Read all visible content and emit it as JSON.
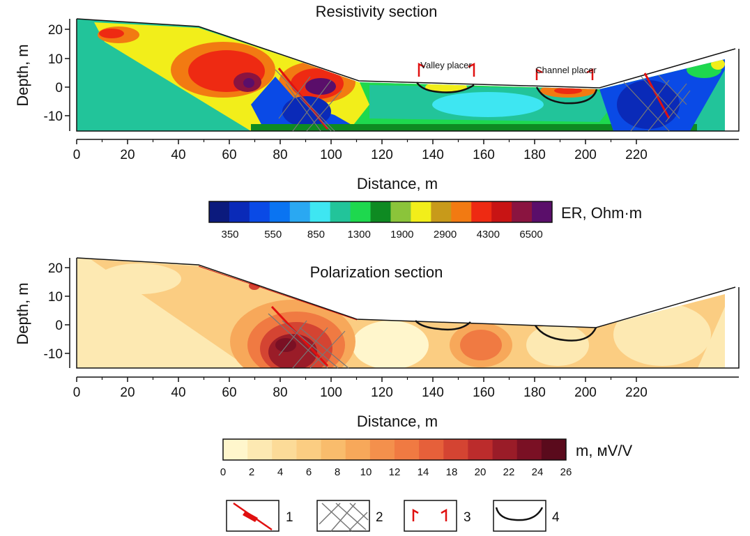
{
  "resistivity": {
    "title": "Resistivity section",
    "xlabel": "Distance, m",
    "ylabel": "Depth, m",
    "xticks": [
      "0",
      "20",
      "40",
      "60",
      "80",
      "100",
      "120",
      "140",
      "160",
      "180",
      "200",
      "220"
    ],
    "yticks": [
      "20",
      "10",
      "0",
      "-10"
    ],
    "annotations": [
      "Valley placer",
      "Channel placer"
    ],
    "colorbar": {
      "label": "ER, Ohm·m",
      "tick_labels": [
        "350",
        "550",
        "850",
        "1300",
        "1900",
        "2900",
        "4300",
        "6500"
      ],
      "colors": [
        "#0b1a7d",
        "#0a2ab8",
        "#0a4ae6",
        "#0a74f2",
        "#2aa8f2",
        "#3ee6f2",
        "#22c49a",
        "#1ed84e",
        "#0e8a22",
        "#8bc43a",
        "#f2ee1a",
        "#c89a1a",
        "#f27a12",
        "#ee2a12",
        "#c81414",
        "#8a1440",
        "#5a0e6a"
      ]
    }
  },
  "polarization": {
    "title": "Polarization section",
    "xlabel": "Distance, m",
    "ylabel": "Depth, m",
    "xticks": [
      "0",
      "20",
      "40",
      "60",
      "80",
      "100",
      "120",
      "140",
      "160",
      "180",
      "200",
      "220"
    ],
    "yticks": [
      "20",
      "10",
      "0",
      "-10"
    ],
    "colorbar": {
      "label": "m, мV/V",
      "tick_labels": [
        "0",
        "2",
        "4",
        "6",
        "8",
        "10",
        "12",
        "14",
        "18",
        "20",
        "22",
        "24",
        "26"
      ],
      "colors": [
        "#fff6cc",
        "#fde9b2",
        "#fcdb98",
        "#fbcd82",
        "#f9bc6c",
        "#f7a85a",
        "#f4904c",
        "#f07a42",
        "#e6603a",
        "#d44432",
        "#bc2c2c",
        "#9a1c28",
        "#7a1024",
        "#5a0a1c"
      ]
    }
  },
  "legend": {
    "items": [
      {
        "number": "1",
        "icon": "fault-line-icon"
      },
      {
        "number": "2",
        "icon": "crosshatch-zone-icon"
      },
      {
        "number": "3",
        "icon": "placer-bracket-icon"
      },
      {
        "number": "4",
        "icon": "placer-contour-icon"
      }
    ]
  }
}
